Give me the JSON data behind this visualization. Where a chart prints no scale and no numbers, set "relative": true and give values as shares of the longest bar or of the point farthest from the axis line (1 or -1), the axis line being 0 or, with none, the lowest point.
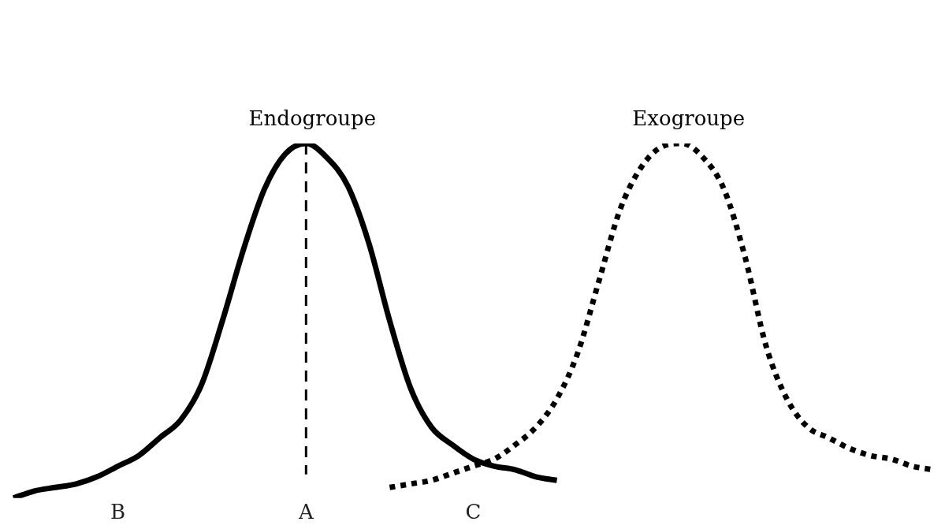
{
  "chart_data": {
    "type": "line",
    "relative": true,
    "legend": false,
    "grid": false,
    "marker": "none",
    "categories": [
      null,
      null,
      null,
      null,
      null,
      "B",
      null,
      null,
      null,
      null,
      null,
      null,
      null,
      null,
      "A",
      null,
      null,
      null,
      null,
      null,
      null,
      null,
      "C",
      null,
      null,
      null,
      null,
      null,
      null,
      null,
      null,
      null,
      null,
      null,
      null,
      null,
      null,
      null,
      null,
      null,
      null,
      null,
      null,
      null,
      null
    ],
    "series": [
      {
        "name": "Endogroupe",
        "color": "#000000",
        "line_style": "solid",
        "values": [
          0.0,
          0.02,
          0.03,
          0.04,
          0.06,
          0.09,
          0.12,
          0.17,
          0.22,
          0.32,
          0.5,
          0.7,
          0.87,
          0.97,
          1.0,
          0.96,
          0.88,
          0.72,
          0.5,
          0.31,
          0.2,
          0.15,
          0.11,
          0.09,
          0.08,
          0.06,
          0.05,
          null,
          null,
          null,
          null,
          null,
          null,
          null,
          null,
          null,
          null,
          null,
          null,
          null,
          null,
          null,
          null,
          null,
          null
        ]
      },
      {
        "name": "Exogroupe",
        "color": "#000000",
        "line_style": "dotted",
        "values": [
          null,
          null,
          null,
          null,
          null,
          null,
          null,
          null,
          null,
          null,
          null,
          null,
          null,
          null,
          null,
          null,
          null,
          null,
          0.03,
          0.04,
          0.05,
          0.07,
          0.09,
          0.11,
          0.15,
          0.2,
          0.28,
          0.41,
          0.61,
          0.81,
          0.93,
          0.99,
          1.0,
          0.96,
          0.87,
          0.68,
          0.43,
          0.28,
          0.2,
          0.17,
          0.14,
          0.12,
          0.11,
          0.09,
          0.08
        ]
      }
    ],
    "ref_lines": [
      {
        "axis": "x",
        "value": "A",
        "color": "#000000",
        "line_style": "dashed"
      }
    ]
  }
}
